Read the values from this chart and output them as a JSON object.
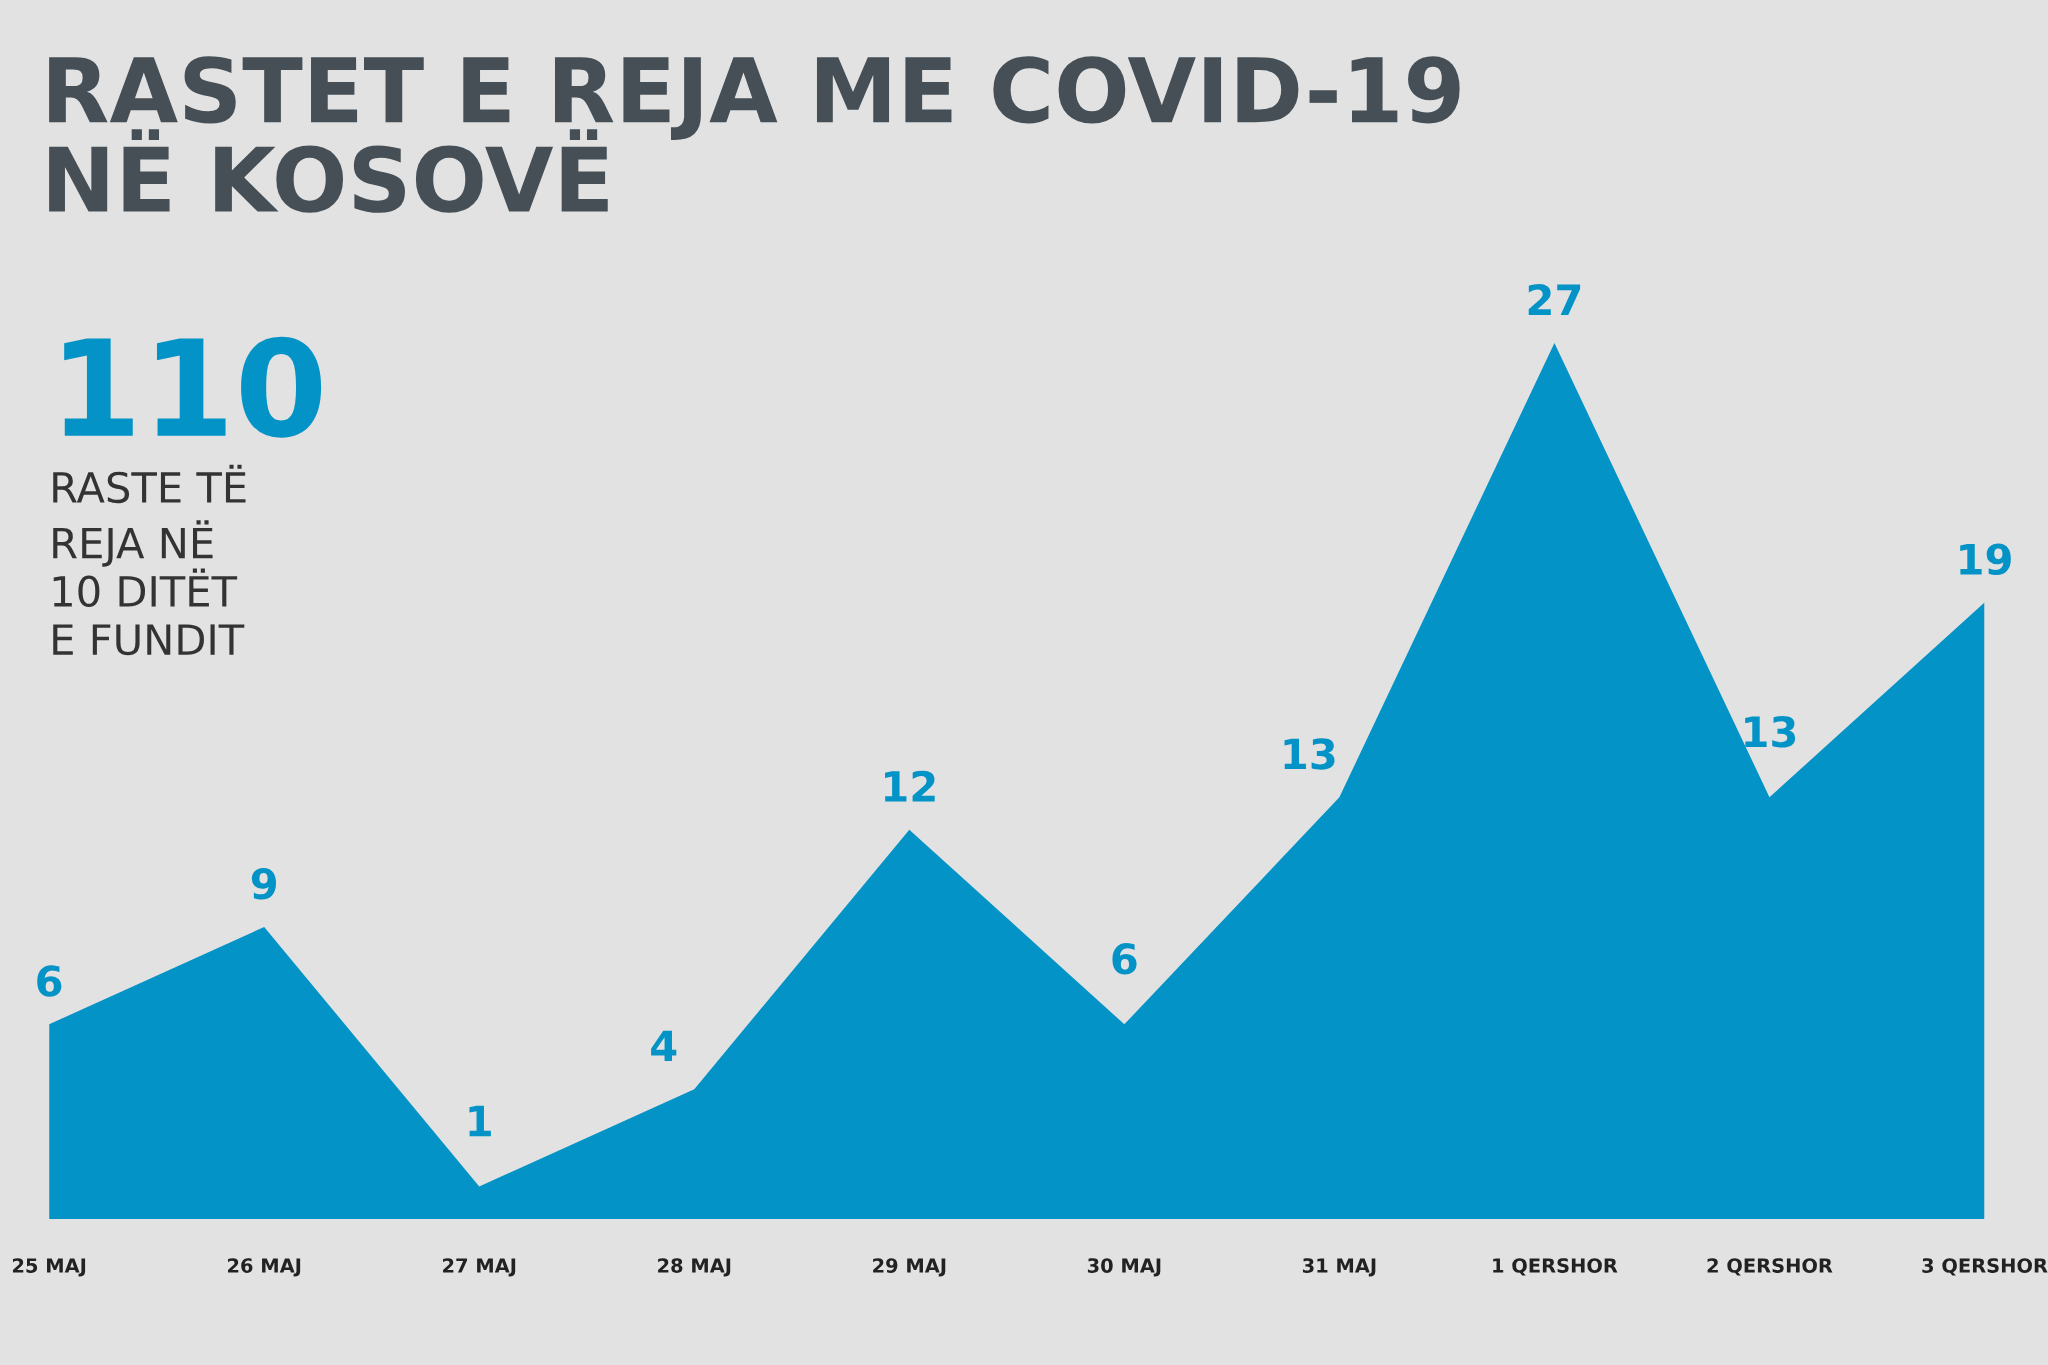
{
  "chart_data": {
    "type": "area",
    "title": "RASTET E REJA ME COVID-19\nNË KOSOVË",
    "categories": [
      "25 MAJ",
      "26 MAJ",
      "27 MAJ",
      "28 MAJ",
      "29 MAJ",
      "30 MAJ",
      "31 MAJ",
      "1 QERSHOR",
      "2 QERSHOR",
      "3 QERSHOR"
    ],
    "series": [
      {
        "color": "#0393c6",
        "values": [
          6,
          9,
          1,
          4,
          12,
          6,
          13,
          27,
          13,
          19
        ]
      }
    ],
    "data_labels": true,
    "grid": false,
    "legend": false,
    "annotations": [
      "110",
      "RASTE TË\nREJA NË\n10 DITËT\nE FUNDIT"
    ]
  }
}
